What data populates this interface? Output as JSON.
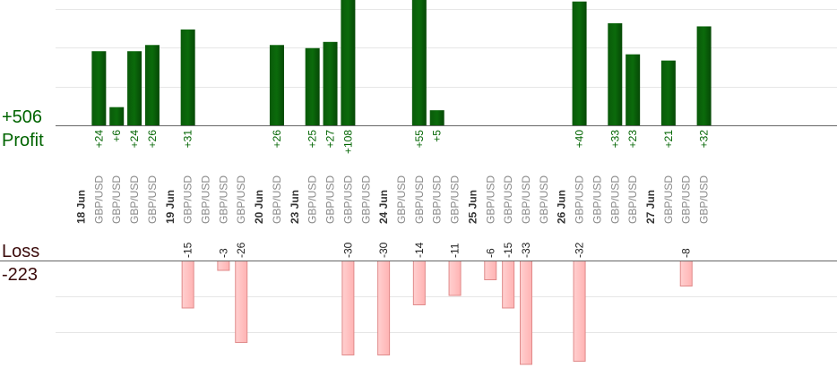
{
  "profit_panel": {
    "total": "+506",
    "label": "Profit"
  },
  "loss_panel": {
    "total": "-223",
    "label": "Loss"
  },
  "colors": {
    "profit_bar": "#0b6b0b",
    "profit_text": "#006400",
    "loss_bar": "#ffb3b3",
    "loss_border": "#e08a8a",
    "gridline": "#e6e6e6",
    "baseline": "#666666"
  },
  "chart_data": [
    {
      "type": "bar",
      "title": "",
      "series": [
        {
          "name": "Profit"
        }
      ],
      "categories": [
        "18 Jun",
        "GBP/USD",
        "GBP/USD",
        "GBP/USD",
        "GBP/USD",
        "19 Jun",
        "GBP/USD",
        "GBP/USD",
        "GBP/USD",
        "GBP/USD",
        "20 Jun",
        "GBP/USD",
        "23 Jun",
        "GBP/USD",
        "GBP/USD",
        "GBP/USD",
        "GBP/USD",
        "24 Jun",
        "GBP/USD",
        "GBP/USD",
        "GBP/USD",
        "GBP/USD",
        "25 Jun",
        "GBP/USD",
        "GBP/USD",
        "GBP/USD",
        "GBP/USD",
        "26 Jun",
        "GBP/USD",
        "GBP/USD",
        "GBP/USD",
        "GBP/USD",
        "27 Jun",
        "GBP/USD",
        "GBP/USD",
        "GBP/USD"
      ],
      "values": [
        null,
        24,
        6,
        24,
        26,
        null,
        31,
        null,
        null,
        null,
        null,
        26,
        null,
        25,
        27,
        108,
        null,
        null,
        null,
        55,
        5,
        null,
        null,
        null,
        null,
        null,
        null,
        null,
        40,
        null,
        33,
        23,
        null,
        21,
        null,
        32
      ],
      "value_labels": [
        null,
        "+24",
        "+6",
        "+24",
        "+26",
        null,
        "+31",
        null,
        null,
        null,
        null,
        "+26",
        null,
        "+25",
        "+27",
        "+108",
        null,
        null,
        null,
        "+55",
        "+5",
        null,
        null,
        null,
        null,
        null,
        null,
        null,
        "+40",
        null,
        "+33",
        "+23",
        null,
        "+21",
        null,
        "+32"
      ],
      "ylim": [
        0,
        32
      ]
    },
    {
      "type": "bar",
      "title": "",
      "series": [
        {
          "name": "Loss"
        }
      ],
      "categories": [
        "18 Jun",
        "GBP/USD",
        "GBP/USD",
        "GBP/USD",
        "GBP/USD",
        "19 Jun",
        "GBP/USD",
        "GBP/USD",
        "GBP/USD",
        "GBP/USD",
        "20 Jun",
        "GBP/USD",
        "23 Jun",
        "GBP/USD",
        "GBP/USD",
        "GBP/USD",
        "GBP/USD",
        "24 Jun",
        "GBP/USD",
        "GBP/USD",
        "GBP/USD",
        "GBP/USD",
        "25 Jun",
        "GBP/USD",
        "GBP/USD",
        "GBP/USD",
        "GBP/USD",
        "26 Jun",
        "GBP/USD",
        "GBP/USD",
        "GBP/USD",
        "GBP/USD",
        "27 Jun",
        "GBP/USD",
        "GBP/USD",
        "GBP/USD"
      ],
      "values": [
        null,
        null,
        null,
        null,
        null,
        null,
        -15,
        null,
        -3,
        -26,
        null,
        null,
        null,
        null,
        null,
        -30,
        null,
        -30,
        null,
        -14,
        null,
        -11,
        null,
        -6,
        -15,
        -33,
        null,
        null,
        -32,
        null,
        null,
        null,
        null,
        null,
        -8,
        null
      ],
      "value_labels": [
        null,
        null,
        null,
        null,
        null,
        null,
        "-15",
        null,
        "-3",
        "-26",
        null,
        null,
        null,
        null,
        null,
        "-30",
        null,
        "-30",
        null,
        "-14",
        null,
        "-11",
        null,
        "-6",
        "-15",
        "-33",
        null,
        null,
        "-32",
        null,
        null,
        null,
        null,
        null,
        "-8",
        null
      ],
      "ylim": [
        -30,
        0
      ]
    }
  ]
}
